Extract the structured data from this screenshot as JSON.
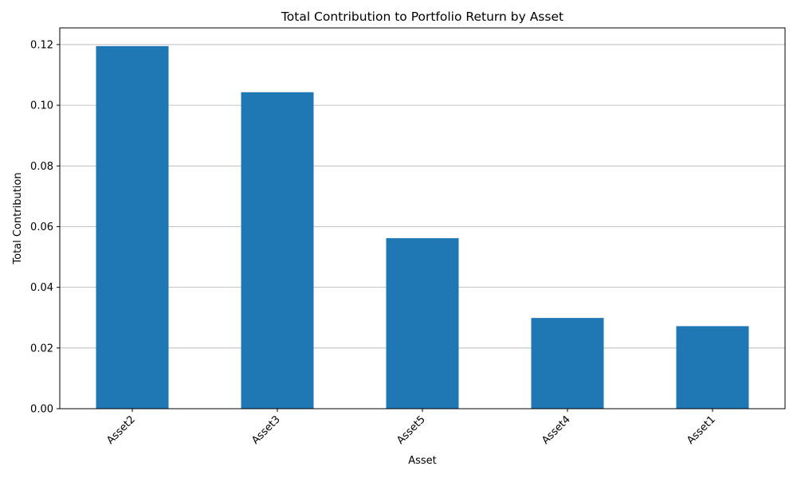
{
  "chart_data": {
    "type": "bar",
    "title": "Total Contribution to Portfolio Return by Asset",
    "xlabel": "Asset",
    "ylabel": "Total Contribution",
    "categories": [
      "Asset2",
      "Asset3",
      "Asset5",
      "Asset4",
      "Asset1"
    ],
    "values": [
      0.1195,
      0.1043,
      0.0562,
      0.0299,
      0.0272
    ],
    "ylim": [
      0,
      0.1255
    ],
    "yticks": [
      0.0,
      0.02,
      0.04,
      0.06,
      0.08,
      0.1,
      0.12
    ],
    "ytick_labels": [
      "0.00",
      "0.02",
      "0.04",
      "0.06",
      "0.08",
      "0.10",
      "0.12"
    ],
    "grid": "y-axis only",
    "legend": "none",
    "x_tick_rotation": "45 degrees",
    "bar_color": "#1f77b4"
  }
}
